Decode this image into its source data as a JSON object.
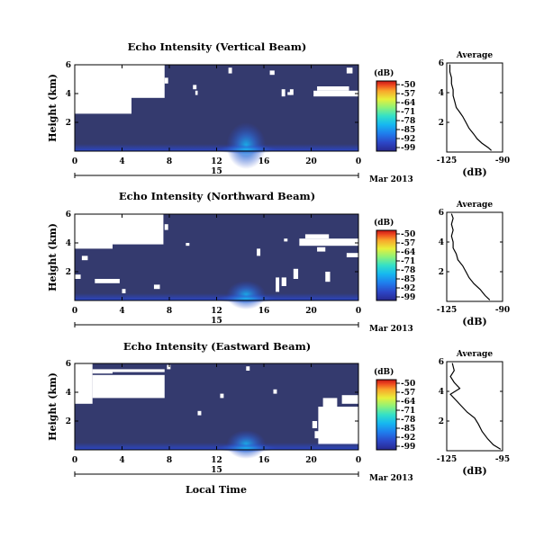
{
  "figure": {
    "date_label": "Mar 2013",
    "day_label": "15",
    "xlabel": "Local Time",
    "colors": {
      "background_plot": "#343a6e",
      "missing": "#ffffff",
      "colormap": [
        "#28288e",
        "#2c46c6",
        "#1f7ded",
        "#16b8f0",
        "#33e0c8",
        "#8cf27a",
        "#e8ef3a",
        "#f9a52b",
        "#ee4a1f",
        "#c51616"
      ]
    }
  },
  "chart_data": [
    {
      "type": "heatmap",
      "title": "Echo Intensity (Vertical Beam)",
      "xlabel": "",
      "ylabel": "Height (km)",
      "x_ticks": [
        "0",
        "4",
        "8",
        "12",
        "16",
        "20",
        "0"
      ],
      "y_ticks": [
        "2",
        "4",
        "6"
      ],
      "xlim": [
        0,
        24
      ],
      "ylim": [
        0,
        6
      ],
      "colorbar": {
        "unit": "(dB)",
        "ticks": [
          "-50",
          "-57",
          "-64",
          "-71",
          "-78",
          "-85",
          "-92",
          "-99"
        ],
        "range": [
          -99,
          -50
        ]
      },
      "average_panel": {
        "title": "Average",
        "xlabel": "(dB)",
        "x_ticks": [
          "-125",
          "-90"
        ],
        "xlim": [
          -125,
          -90
        ],
        "y_ticks": [
          "2",
          "4",
          "6"
        ],
        "ylim": [
          0,
          6
        ],
        "profile": [
          {
            "db": -97,
            "km": 0.1
          },
          {
            "db": -99,
            "km": 0.3
          },
          {
            "db": -103,
            "km": 0.6
          },
          {
            "db": -106,
            "km": 0.9
          },
          {
            "db": -108,
            "km": 1.2
          },
          {
            "db": -111,
            "km": 1.6
          },
          {
            "db": -113,
            "km": 2.0
          },
          {
            "db": -115,
            "km": 2.4
          },
          {
            "db": -117,
            "km": 2.7
          },
          {
            "db": -119,
            "km": 3.0
          },
          {
            "db": -120,
            "km": 3.4
          },
          {
            "db": -121,
            "km": 3.8
          },
          {
            "db": -121,
            "km": 4.2
          },
          {
            "db": -122,
            "km": 4.6
          },
          {
            "db": -122,
            "km": 5.0
          },
          {
            "db": -123,
            "km": 5.4
          },
          {
            "db": -123,
            "km": 5.9
          }
        ]
      }
    },
    {
      "type": "heatmap",
      "title": "Echo Intensity (Northward Beam)",
      "xlabel": "",
      "ylabel": "Height (km)",
      "x_ticks": [
        "0",
        "4",
        "8",
        "12",
        "16",
        "20",
        "0"
      ],
      "y_ticks": [
        "2",
        "4",
        "6"
      ],
      "xlim": [
        0,
        24
      ],
      "ylim": [
        0,
        6
      ],
      "colorbar": {
        "unit": "(dB)",
        "ticks": [
          "-50",
          "-57",
          "-64",
          "-71",
          "-78",
          "-85",
          "-92",
          "-99"
        ],
        "range": [
          -99,
          -50
        ]
      },
      "average_panel": {
        "title": "Average",
        "xlabel": "(dB)",
        "x_ticks": [
          "-125",
          "-90"
        ],
        "xlim": [
          -125,
          -90
        ],
        "y_ticks": [
          "2",
          "4",
          "6"
        ],
        "ylim": [
          0,
          6
        ],
        "profile": [
          {
            "db": -98,
            "km": 0.1
          },
          {
            "db": -101,
            "km": 0.4
          },
          {
            "db": -104,
            "km": 0.8
          },
          {
            "db": -108,
            "km": 1.2
          },
          {
            "db": -111,
            "km": 1.6
          },
          {
            "db": -113,
            "km": 2.0
          },
          {
            "db": -115,
            "km": 2.4
          },
          {
            "db": -118,
            "km": 2.8
          },
          {
            "db": -119,
            "km": 3.2
          },
          {
            "db": -121,
            "km": 3.6
          },
          {
            "db": -121,
            "km": 4.0
          },
          {
            "db": -122,
            "km": 4.4
          },
          {
            "db": -121,
            "km": 4.8
          },
          {
            "db": -122,
            "km": 5.2
          },
          {
            "db": -121,
            "km": 5.6
          },
          {
            "db": -122,
            "km": 5.9
          }
        ]
      }
    },
    {
      "type": "heatmap",
      "title": "Echo Intensity (Eastward Beam)",
      "xlabel": "Local Time",
      "ylabel": "Height (km)",
      "x_ticks": [
        "0",
        "4",
        "8",
        "12",
        "16",
        "20",
        "0"
      ],
      "y_ticks": [
        "2",
        "4",
        "6"
      ],
      "xlim": [
        0,
        24
      ],
      "ylim": [
        0,
        6
      ],
      "colorbar": {
        "unit": "(dB)",
        "ticks": [
          "-50",
          "-57",
          "-64",
          "-71",
          "-78",
          "-85",
          "-92",
          "-99"
        ],
        "range": [
          -99,
          -50
        ]
      },
      "average_panel": {
        "title": "Average",
        "xlabel": "(dB)",
        "x_ticks": [
          "-125",
          "-95"
        ],
        "xlim": [
          -125,
          -95
        ],
        "y_ticks": [
          "2",
          "4",
          "6"
        ],
        "ylim": [
          0,
          6
        ],
        "profile": [
          {
            "db": -96,
            "km": 0.1
          },
          {
            "db": -100,
            "km": 0.4
          },
          {
            "db": -103,
            "km": 0.8
          },
          {
            "db": -106,
            "km": 1.3
          },
          {
            "db": -108,
            "km": 1.8
          },
          {
            "db": -110,
            "km": 2.2
          },
          {
            "db": -114,
            "km": 2.6
          },
          {
            "db": -117,
            "km": 3.0
          },
          {
            "db": -120,
            "km": 3.4
          },
          {
            "db": -123,
            "km": 3.8
          },
          {
            "db": -118,
            "km": 4.2
          },
          {
            "db": -121,
            "km": 4.6
          },
          {
            "db": -123,
            "km": 5.0
          },
          {
            "db": -121,
            "km": 5.4
          },
          {
            "db": -122,
            "km": 5.9
          }
        ]
      }
    }
  ]
}
